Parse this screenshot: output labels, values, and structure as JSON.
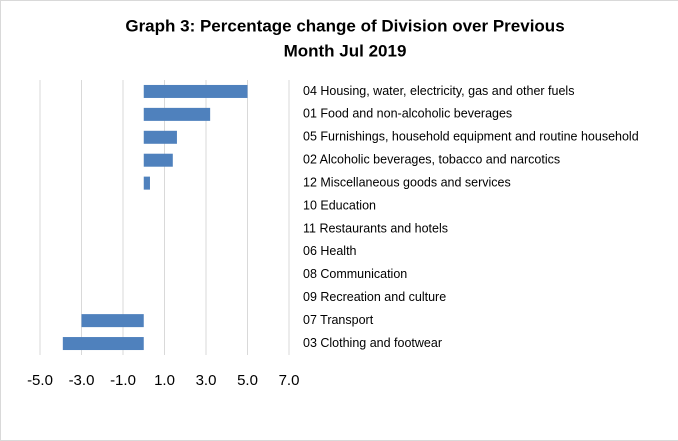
{
  "chart_data": {
    "type": "bar",
    "orientation": "horizontal",
    "title": [
      "Graph 3: Percentage change of Division over Previous",
      "Month Jul 2019"
    ],
    "categories": [
      "04 Housing, water, electricity, gas and other fuels",
      "01 Food and non-alcoholic beverages",
      "05 Furnishings, household equipment and routine household",
      "02 Alcoholic beverages, tobacco and narcotics",
      "12 Miscellaneous goods and services",
      "10 Education",
      "11 Restaurants and hotels",
      "06 Health",
      "08 Communication",
      "09 Recreation and culture",
      "07 Transport",
      "03 Clothing and footwear"
    ],
    "values": [
      5.0,
      3.2,
      1.6,
      1.4,
      0.3,
      0,
      0,
      0,
      0,
      0,
      -3.0,
      -3.9
    ],
    "color": "#4f81bd",
    "xlim": [
      -5,
      7
    ],
    "xticks": [
      {
        "value": -5,
        "label": "-5.0"
      },
      {
        "value": -3,
        "label": "-3.0"
      },
      {
        "value": -1,
        "label": "-1.0"
      },
      {
        "value": 1,
        "label": "1.0"
      },
      {
        "value": 3,
        "label": "3.0"
      },
      {
        "value": 5,
        "label": "5.0"
      },
      {
        "value": 7,
        "label": "7.0"
      }
    ],
    "grid": true
  }
}
